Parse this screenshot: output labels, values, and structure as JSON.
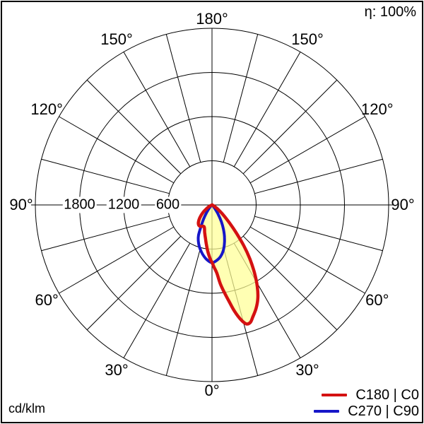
{
  "header": {
    "efficiency": "η: 100%"
  },
  "footer": {
    "unit": "cd/klm"
  },
  "legend": {
    "items": [
      {
        "label": "C180 | C0",
        "color": "#d41111"
      },
      {
        "label": "C270 | C90",
        "color": "#1616c8"
      }
    ]
  },
  "chart_data": {
    "type": "polar_photometric",
    "unit": "cd/klm",
    "efficiency_percent": 100,
    "grid": {
      "spoke_step_deg": 15,
      "r_axis_max": 2400
    },
    "r_ticks": [
      {
        "value": 600,
        "label": "600"
      },
      {
        "value": 1200,
        "label": "1200"
      },
      {
        "value": 1800,
        "label": "1800"
      },
      {
        "value": 2400,
        "label": ""
      }
    ],
    "angle_labels": [
      {
        "gamma": 0,
        "label": "0°"
      },
      {
        "gamma": 30,
        "label": "30°"
      },
      {
        "gamma": 60,
        "label": "60°"
      },
      {
        "gamma": 90,
        "label": "90°"
      },
      {
        "gamma": 120,
        "label": "120°"
      },
      {
        "gamma": 150,
        "label": "150°"
      },
      {
        "gamma": 180,
        "label": "180°"
      }
    ],
    "series": [
      {
        "name": "C180 | C0",
        "color": "#d41111",
        "fill": "rgba(255,255,150,0.72)",
        "stroke_width": 4.5,
        "points": [
          [
            -75,
            0
          ],
          [
            -65,
            25
          ],
          [
            -58,
            70
          ],
          [
            -50,
            160
          ],
          [
            -44,
            235
          ],
          [
            -38,
            300
          ],
          [
            -33,
            330
          ],
          [
            -28,
            330
          ],
          [
            -23,
            315
          ],
          [
            -19,
            320
          ],
          [
            -15,
            385
          ],
          [
            -11,
            465
          ],
          [
            -8,
            545
          ],
          [
            -5,
            640
          ],
          [
            -2,
            730
          ],
          [
            0,
            780
          ],
          [
            2,
            850
          ],
          [
            4,
            925
          ],
          [
            6,
            1075
          ],
          [
            8,
            1200
          ],
          [
            10,
            1330
          ],
          [
            12,
            1480
          ],
          [
            14,
            1600
          ],
          [
            16,
            1680
          ],
          [
            18,
            1680
          ],
          [
            20,
            1620
          ],
          [
            23,
            1530
          ],
          [
            26,
            1420
          ],
          [
            29,
            1270
          ],
          [
            32,
            1090
          ],
          [
            35,
            900
          ],
          [
            38,
            700
          ],
          [
            41,
            500
          ],
          [
            44,
            350
          ],
          [
            47,
            240
          ],
          [
            50,
            165
          ],
          [
            54,
            95
          ],
          [
            58,
            50
          ],
          [
            63,
            20
          ],
          [
            70,
            5
          ],
          [
            75,
            0
          ]
        ]
      },
      {
        "name": "C270 | C90",
        "color": "#1616c8",
        "fill": null,
        "stroke_width": 4,
        "points": [
          [
            -50,
            0
          ],
          [
            -42,
            40
          ],
          [
            -36,
            120
          ],
          [
            -31,
            220
          ],
          [
            -27,
            330
          ],
          [
            -24,
            450
          ],
          [
            -21,
            520
          ],
          [
            -17,
            590
          ],
          [
            -13,
            650
          ],
          [
            -9,
            705
          ],
          [
            -5,
            750
          ],
          [
            0,
            785
          ],
          [
            5,
            755
          ],
          [
            9,
            715
          ],
          [
            13,
            655
          ],
          [
            17,
            570
          ],
          [
            21,
            475
          ],
          [
            25,
            370
          ],
          [
            29,
            265
          ],
          [
            34,
            140
          ],
          [
            40,
            45
          ],
          [
            48,
            0
          ]
        ]
      }
    ]
  }
}
